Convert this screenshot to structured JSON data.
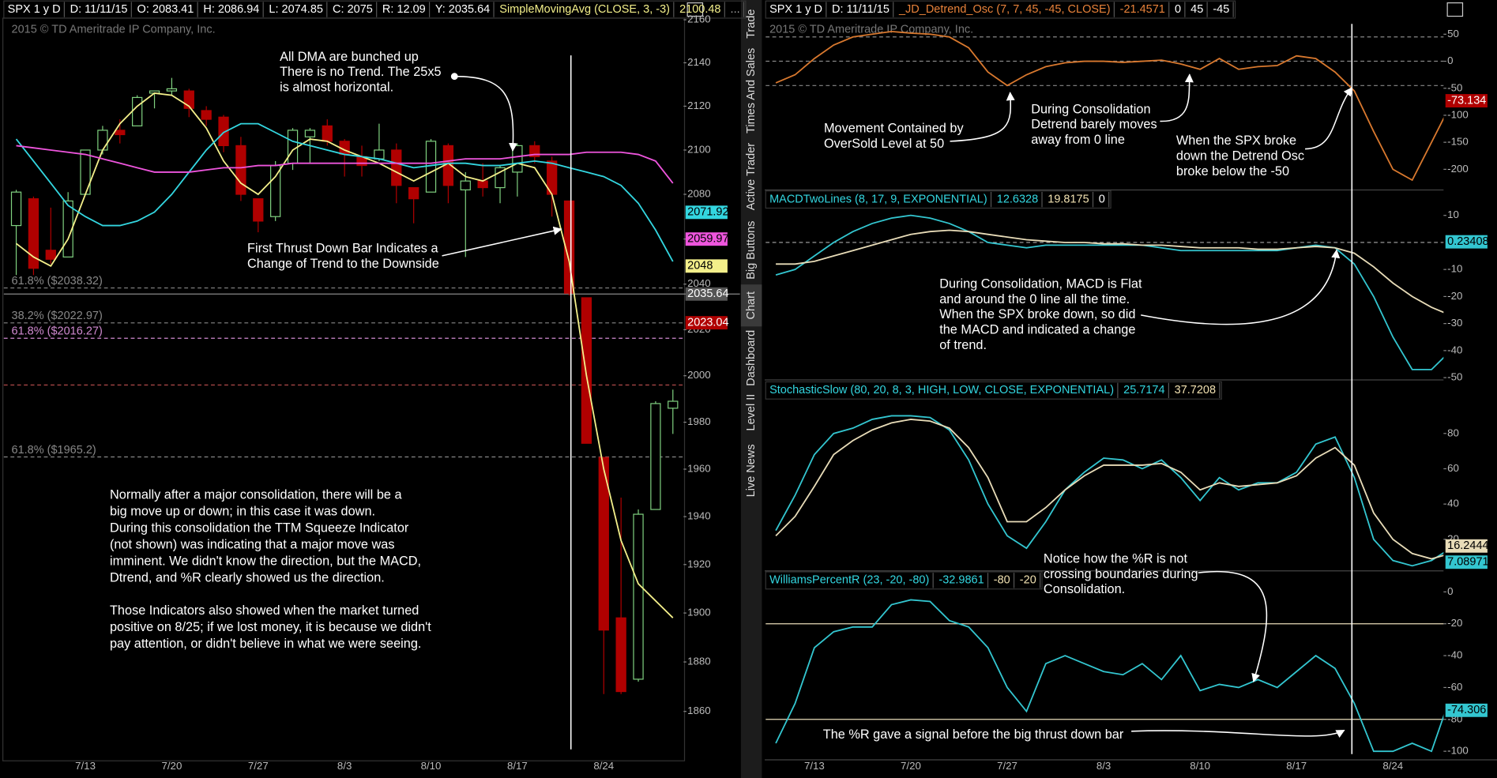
{
  "sidebar_tabs": [
    "Trade",
    "Times And Sales",
    "Active Trader",
    "Big Buttons",
    "Chart",
    "Dashboard",
    "Level II",
    "Live News"
  ],
  "chart_data": [
    {
      "type": "candlestick",
      "copyright": "2015 © TD Ameritrade IP Company, Inc.",
      "header": [
        {
          "text": "SPX 1 y D",
          "color": "#ffffff"
        },
        {
          "text": "D: 11/11/15",
          "color": "#ffffff"
        },
        {
          "text": "O: 2083.41",
          "color": "#ffffff"
        },
        {
          "text": "H: 2086.94",
          "color": "#ffffff"
        },
        {
          "text": "L: 2074.85",
          "color": "#ffffff"
        },
        {
          "text": "C: 2075",
          "color": "#ffffff"
        },
        {
          "text": "R: 12.09",
          "color": "#ffffff"
        },
        {
          "text": "Y: 2035.64",
          "color": "#ffffff"
        },
        {
          "text": "SimpleMovingAvg (CLOSE, 3, -3)",
          "color": "#f3ef8a"
        },
        {
          "text": 2100.48,
          "color": "#f3ef8a"
        },
        {
          "text": "...",
          "color": "#aaaaaa"
        }
      ],
      "log": true,
      "ylim": [
        1841,
        2167
      ],
      "yticks": [
        1860,
        1880,
        1900,
        1920,
        1940,
        1960,
        1980,
        2000,
        2020,
        2040,
        2060,
        2080,
        2100,
        2120,
        2140,
        2160
      ],
      "categories": [
        null,
        null,
        null,
        null,
        "7/13",
        null,
        null,
        null,
        null,
        "7/20",
        null,
        null,
        null,
        null,
        "7/27",
        null,
        null,
        null,
        null,
        "8/3",
        null,
        null,
        null,
        null,
        "8/10",
        null,
        null,
        null,
        null,
        "8/17",
        null,
        null,
        null,
        null,
        "8/24",
        null,
        null,
        null,
        null
      ],
      "open": [
        2066,
        2078,
        2055,
        2052,
        2080,
        2100,
        2109,
        2111,
        2126,
        2127,
        2127,
        2118,
        2115,
        2102,
        2078,
        2070,
        2094,
        2106,
        2111,
        2104,
        2097,
        2096,
        2100,
        2083,
        2081,
        2102,
        2082,
        2086,
        2083,
        2090,
        2102,
        2095,
        2077,
        2034,
        1965,
        1898,
        1873,
        1943,
        1986
      ],
      "high": [
        2082,
        2079,
        2074,
        2081,
        2100,
        2111,
        2114,
        2125,
        2127,
        2133,
        2128,
        2120,
        2116,
        2106,
        2078,
        2095,
        2110,
        2110,
        2114,
        2105,
        2102,
        2112,
        2103,
        2083,
        2105,
        2103,
        2090,
        2094,
        2093,
        2103,
        2104,
        2097,
        2077,
        2034,
        1965,
        1948,
        1943,
        1989,
        1994
      ],
      "low": [
        2044,
        2044,
        2049,
        2052,
        2080,
        2098,
        2103,
        2111,
        2119,
        2125,
        2115,
        2111,
        2099,
        2077,
        2063,
        2068,
        2091,
        2094,
        2102,
        2088,
        2088,
        2095,
        2076,
        2067,
        2081,
        2076,
        2052,
        2079,
        2076,
        2079,
        2094,
        2070,
        2035,
        1971,
        1867,
        1867,
        1872,
        1943,
        1975
      ],
      "close": [
        2081,
        2047,
        2051,
        2077,
        2100,
        2109,
        2107,
        2124,
        2127,
        2128,
        2119,
        2114,
        2102,
        2080,
        2068,
        2093,
        2109,
        2109,
        2104,
        2098,
        2093,
        2100,
        2084,
        2078,
        2104,
        2084,
        2086,
        2083,
        2092,
        2102,
        2097,
        2080,
        2036,
        1971,
        1893,
        1868,
        1941,
        1988,
        1989
      ],
      "up_color": "#7fd07f",
      "down_color": "#b00000",
      "series": [
        {
          "color": "#f3ef8a",
          "values": [
            2058,
            2052,
            2048,
            2060,
            2080,
            2100,
            2112,
            2120,
            2126,
            2125,
            2120,
            2110,
            2095,
            2085,
            2080,
            2088,
            2100,
            2105,
            2104,
            2100,
            2097,
            2094,
            2090,
            2086,
            2090,
            2094,
            2088,
            2086,
            2090,
            2094,
            2092,
            2080,
            2050,
            2000,
            1960,
            1930,
            1912,
            1905,
            1898
          ]
        },
        {
          "color": "#33d6e0",
          "values": [
            2105,
            2095,
            2085,
            2075,
            2070,
            2066,
            2066,
            2068,
            2072,
            2080,
            2090,
            2100,
            2108,
            2112,
            2112,
            2108,
            2104,
            2102,
            2100,
            2098,
            2097,
            2096,
            2094,
            2092,
            2093,
            2094,
            2094,
            2093,
            2093,
            2094,
            2095,
            2094,
            2092,
            2090,
            2088,
            2084,
            2076,
            2064,
            2050
          ]
        },
        {
          "color": "#ee55dd",
          "values": [
            2102,
            2101,
            2100,
            2099,
            2098,
            2096,
            2094,
            2092,
            2090,
            2090,
            2090,
            2091,
            2092,
            2092,
            2093,
            2093,
            2094,
            2094,
            2094,
            2094,
            2094,
            2094,
            2094,
            2094,
            2094,
            2095,
            2096,
            2096,
            2096,
            2097,
            2098,
            2098,
            2098,
            2099,
            2099,
            2099,
            2098,
            2095,
            2085
          ]
        }
      ],
      "price_labels": [
        {
          "value": 2071.92,
          "color": "#33d6e0",
          "text_color": "#000000"
        },
        {
          "value": 2059.97,
          "color": "#ee55dd",
          "text_color": "#000000"
        },
        {
          "value": 2048,
          "color": "#f3ef8a",
          "text_color": "#000000"
        },
        {
          "value": 2035.64,
          "color": "#555555",
          "text_color": "#ffffff"
        },
        {
          "value": 2023.04,
          "color": "#b00000",
          "text_color": "#ffffff"
        }
      ],
      "levels": [
        {
          "label": "61.8% ($2038.32)",
          "value": 2038.32,
          "color": "#888888"
        },
        {
          "label": "38.2% ($2022.97)",
          "value": 2022.97,
          "color": "#888888"
        },
        {
          "label": "61.8% ($2016.27)",
          "value": 2016.27,
          "color": "#d08ad0"
        },
        {
          "label": "61.8% ($1965.2)",
          "value": 1965.2,
          "color": "#888888"
        }
      ],
      "ref_lines": [
        {
          "value": 2035.64,
          "color": "#888888",
          "dash": false
        },
        {
          "value": 1996,
          "color": "#c05050",
          "dash": true
        }
      ]
    },
    {
      "type": "line",
      "copyright": "2015 © TD Ameritrade IP Company, Inc.",
      "header": [
        {
          "text": "SPX 1 y D",
          "color": "#ffffff"
        },
        {
          "text": "D: 11/11/15",
          "color": "#ffffff"
        },
        {
          "text": "_JD_Detrend_Osc (7, 7, 45, -45, CLOSE)",
          "color": "#e8823a"
        },
        {
          "text": -21.4571,
          "color": "#e8823a"
        },
        {
          "text": 0,
          "color": "#ffffff"
        },
        {
          "text": 45,
          "color": "#ffffff"
        },
        {
          "text": -45,
          "color": "#ffffff"
        }
      ],
      "ylim": [
        -240,
        78
      ],
      "yticks": [
        50,
        0,
        -50,
        -100,
        -150,
        -200
      ],
      "series": [
        {
          "color": "#d8782e",
          "values": [
            null,
            null,
            -40,
            -25,
            5,
            30,
            45,
            50,
            55,
            52,
            50,
            45,
            25,
            -20,
            -45,
            -25,
            -10,
            -3,
            0,
            0,
            -2,
            0,
            2,
            -5,
            -15,
            5,
            -15,
            -10,
            -8,
            10,
            5,
            -20,
            -55,
            -130,
            -200,
            -220,
            -150,
            -80,
            null
          ]
        }
      ],
      "last_values": [
        {
          "value": -73.134,
          "color": "#b00000",
          "text_color": "#ffffff"
        }
      ],
      "ref_lines": [
        {
          "value": 45,
          "color": "#888888",
          "dash": true
        },
        {
          "value": 0,
          "color": "#888888",
          "dash": true
        },
        {
          "value": -45,
          "color": "#888888",
          "dash": true
        }
      ]
    },
    {
      "type": "line",
      "header": [
        {
          "text": "MACDTwoLines (8, 17, 9, EXPONENTIAL)",
          "color": "#33d6e0"
        },
        {
          "text": 12.6328,
          "color": "#33d6e0"
        },
        {
          "text": 19.8175,
          "color": "#f0e0b0"
        },
        {
          "text": 0,
          "color": "#ffffff"
        }
      ],
      "ylim": [
        -50.5,
        12.7
      ],
      "yticks": [
        10,
        -10,
        -20,
        -30,
        -40,
        -50
      ],
      "series": [
        {
          "color": "#33c6d0",
          "values": [
            null,
            null,
            -12,
            -10,
            -5,
            0,
            4,
            7,
            9,
            10,
            9,
            7,
            4,
            0,
            -1,
            -2,
            -1,
            -1,
            -1,
            -1,
            -1,
            -1,
            -2,
            -3,
            -3,
            -3,
            -3,
            -3,
            -3,
            -2,
            -1,
            -2,
            -8,
            -20,
            -35,
            -47,
            -47,
            -40,
            null
          ]
        },
        {
          "color": "#e8dcb8",
          "values": [
            null,
            null,
            -8,
            -8,
            -7,
            -5,
            -3,
            -1,
            1,
            3,
            4,
            4.5,
            4,
            3,
            2,
            1,
            0.5,
            0,
            0,
            -0.5,
            -0.5,
            -1,
            -1,
            -1.5,
            -2,
            -2,
            -2,
            -2.5,
            -2.5,
            -2,
            -1.5,
            -2,
            -4,
            -9,
            -15,
            -20,
            -24,
            -27,
            null
          ]
        }
      ],
      "last_values": [
        {
          "value": 0.23408,
          "color": "#33c6d0",
          "text_color": "#000000"
        }
      ],
      "ref_lines": [
        {
          "value": 0,
          "color": "#aaaaaa",
          "dash": true
        }
      ]
    },
    {
      "type": "line",
      "header": [
        {
          "text": "StochasticSlow (80, 20, 8, 3, HIGH, LOW, CLOSE, EXPONENTIAL)",
          "color": "#33d6e0"
        },
        {
          "text": 25.7174,
          "color": "#33d6e0"
        },
        {
          "text": 37.7208,
          "color": "#f0e0b0"
        }
      ],
      "ylim": [
        2.7,
        99.5
      ],
      "yticks": [
        80,
        60,
        40,
        20
      ],
      "series": [
        {
          "color": "#33c6d0",
          "values": [
            null,
            null,
            25,
            45,
            68,
            80,
            83,
            88,
            90,
            90,
            89,
            82,
            65,
            40,
            22,
            15,
            30,
            48,
            58,
            66,
            65,
            60,
            65,
            55,
            42,
            55,
            48,
            52,
            52,
            58,
            74,
            78,
            55,
            20,
            8,
            5,
            8,
            15,
            null
          ]
        },
        {
          "color": "#e8dcb8",
          "values": [
            null,
            null,
            22,
            33,
            50,
            68,
            76,
            82,
            86,
            88,
            87,
            83,
            72,
            55,
            30,
            30,
            38,
            48,
            56,
            62,
            62,
            62,
            63,
            58,
            48,
            52,
            50,
            51,
            52,
            56,
            66,
            72,
            62,
            35,
            20,
            12,
            9,
            12,
            null
          ]
        }
      ],
      "last_values": [
        {
          "value": 16.2444,
          "color": "#e8dcb8",
          "text_color": "#000000"
        },
        {
          "value": 7.08971,
          "color": "#33c6d0",
          "text_color": "#000000"
        }
      ],
      "ref_lines": []
    },
    {
      "type": "line",
      "header": [
        {
          "text": "WilliamsPercentR (23, -20, -80)",
          "color": "#33d6e0"
        },
        {
          "text": -32.9861,
          "color": "#33d6e0"
        },
        {
          "text": -80,
          "color": "#f0e0b0"
        },
        {
          "text": -20,
          "color": "#f0e0b0"
        }
      ],
      "ylim": [
        -104.8,
        12
      ],
      "yticks": [
        0,
        -20,
        -40,
        -60,
        -80,
        -100
      ],
      "categories": [
        null,
        null,
        null,
        null,
        "7/13",
        null,
        null,
        null,
        null,
        "7/20",
        null,
        null,
        null,
        null,
        "7/27",
        null,
        null,
        null,
        null,
        "8/3",
        null,
        null,
        null,
        null,
        "8/10",
        null,
        null,
        null,
        null,
        "8/17",
        null,
        null,
        null,
        null,
        "8/24",
        null,
        null,
        null,
        null
      ],
      "series": [
        {
          "color": "#33c6d0",
          "values": [
            null,
            null,
            -95,
            -70,
            -35,
            -25,
            -22,
            -22,
            -8,
            -5,
            -6,
            -18,
            -22,
            -35,
            -60,
            -75,
            -45,
            -40,
            -45,
            -50,
            -52,
            -45,
            -55,
            -40,
            -62,
            -58,
            -60,
            -55,
            -60,
            -50,
            -40,
            -48,
            -70,
            -100,
            -100,
            -95,
            -100,
            -65,
            null
          ]
        }
      ],
      "last_values": [
        {
          "value": -74.306,
          "color": "#33c6d0",
          "text_color": "#000000"
        }
      ],
      "ref_lines": [
        {
          "value": -20,
          "color": "#e8dcb8",
          "dash": false
        },
        {
          "value": -80,
          "color": "#e8dcb8",
          "dash": false
        }
      ]
    }
  ],
  "annotations": [
    {
      "lines": [
        "All DMA are bunched up",
        "There is no Trend. The 25x5",
        "is almost horizontal."
      ]
    },
    {
      "lines": [
        "First Thrust Down Bar Indicates a",
        "Change of Trend to the Downside"
      ]
    },
    {
      "lines": [
        "Normally after a major consolidation, there will be a",
        "big move up or down; in this case it was down.",
        "During this consolidation the TTM Squeeze Indicator",
        "(not shown) was indicating that a major move was",
        "imminent. We didn't know the direction, but the MACD,",
        "Dtrend, and %R clearly showed us the direction."
      ]
    },
    {
      "lines": [
        "Those Indicators also showed when the market turned",
        "positive on 8/25; if we lost money, it is because we didn't",
        "pay attention, or didn't believe in what we were seeing."
      ]
    },
    {
      "lines": [
        "Movement Contained by",
        "OverSold Level at 50"
      ]
    },
    {
      "lines": [
        "During Consolidation",
        "Detrend barely moves",
        "away from 0 line"
      ]
    },
    {
      "lines": [
        "When the SPX broke",
        "down the Detrend Osc",
        "broke below the -50"
      ]
    },
    {
      "lines": [
        "During Consolidation, MACD is Flat",
        "and around the 0 line all the time.",
        "When the SPX broke down, so did",
        "the MACD and indicated a change",
        "of trend."
      ]
    },
    {
      "lines": [
        "Notice how the %R is not",
        "crossing boundaries during",
        "Consolidation."
      ]
    },
    {
      "lines": [
        "The %R gave a signal before the big thrust down bar"
      ]
    }
  ]
}
